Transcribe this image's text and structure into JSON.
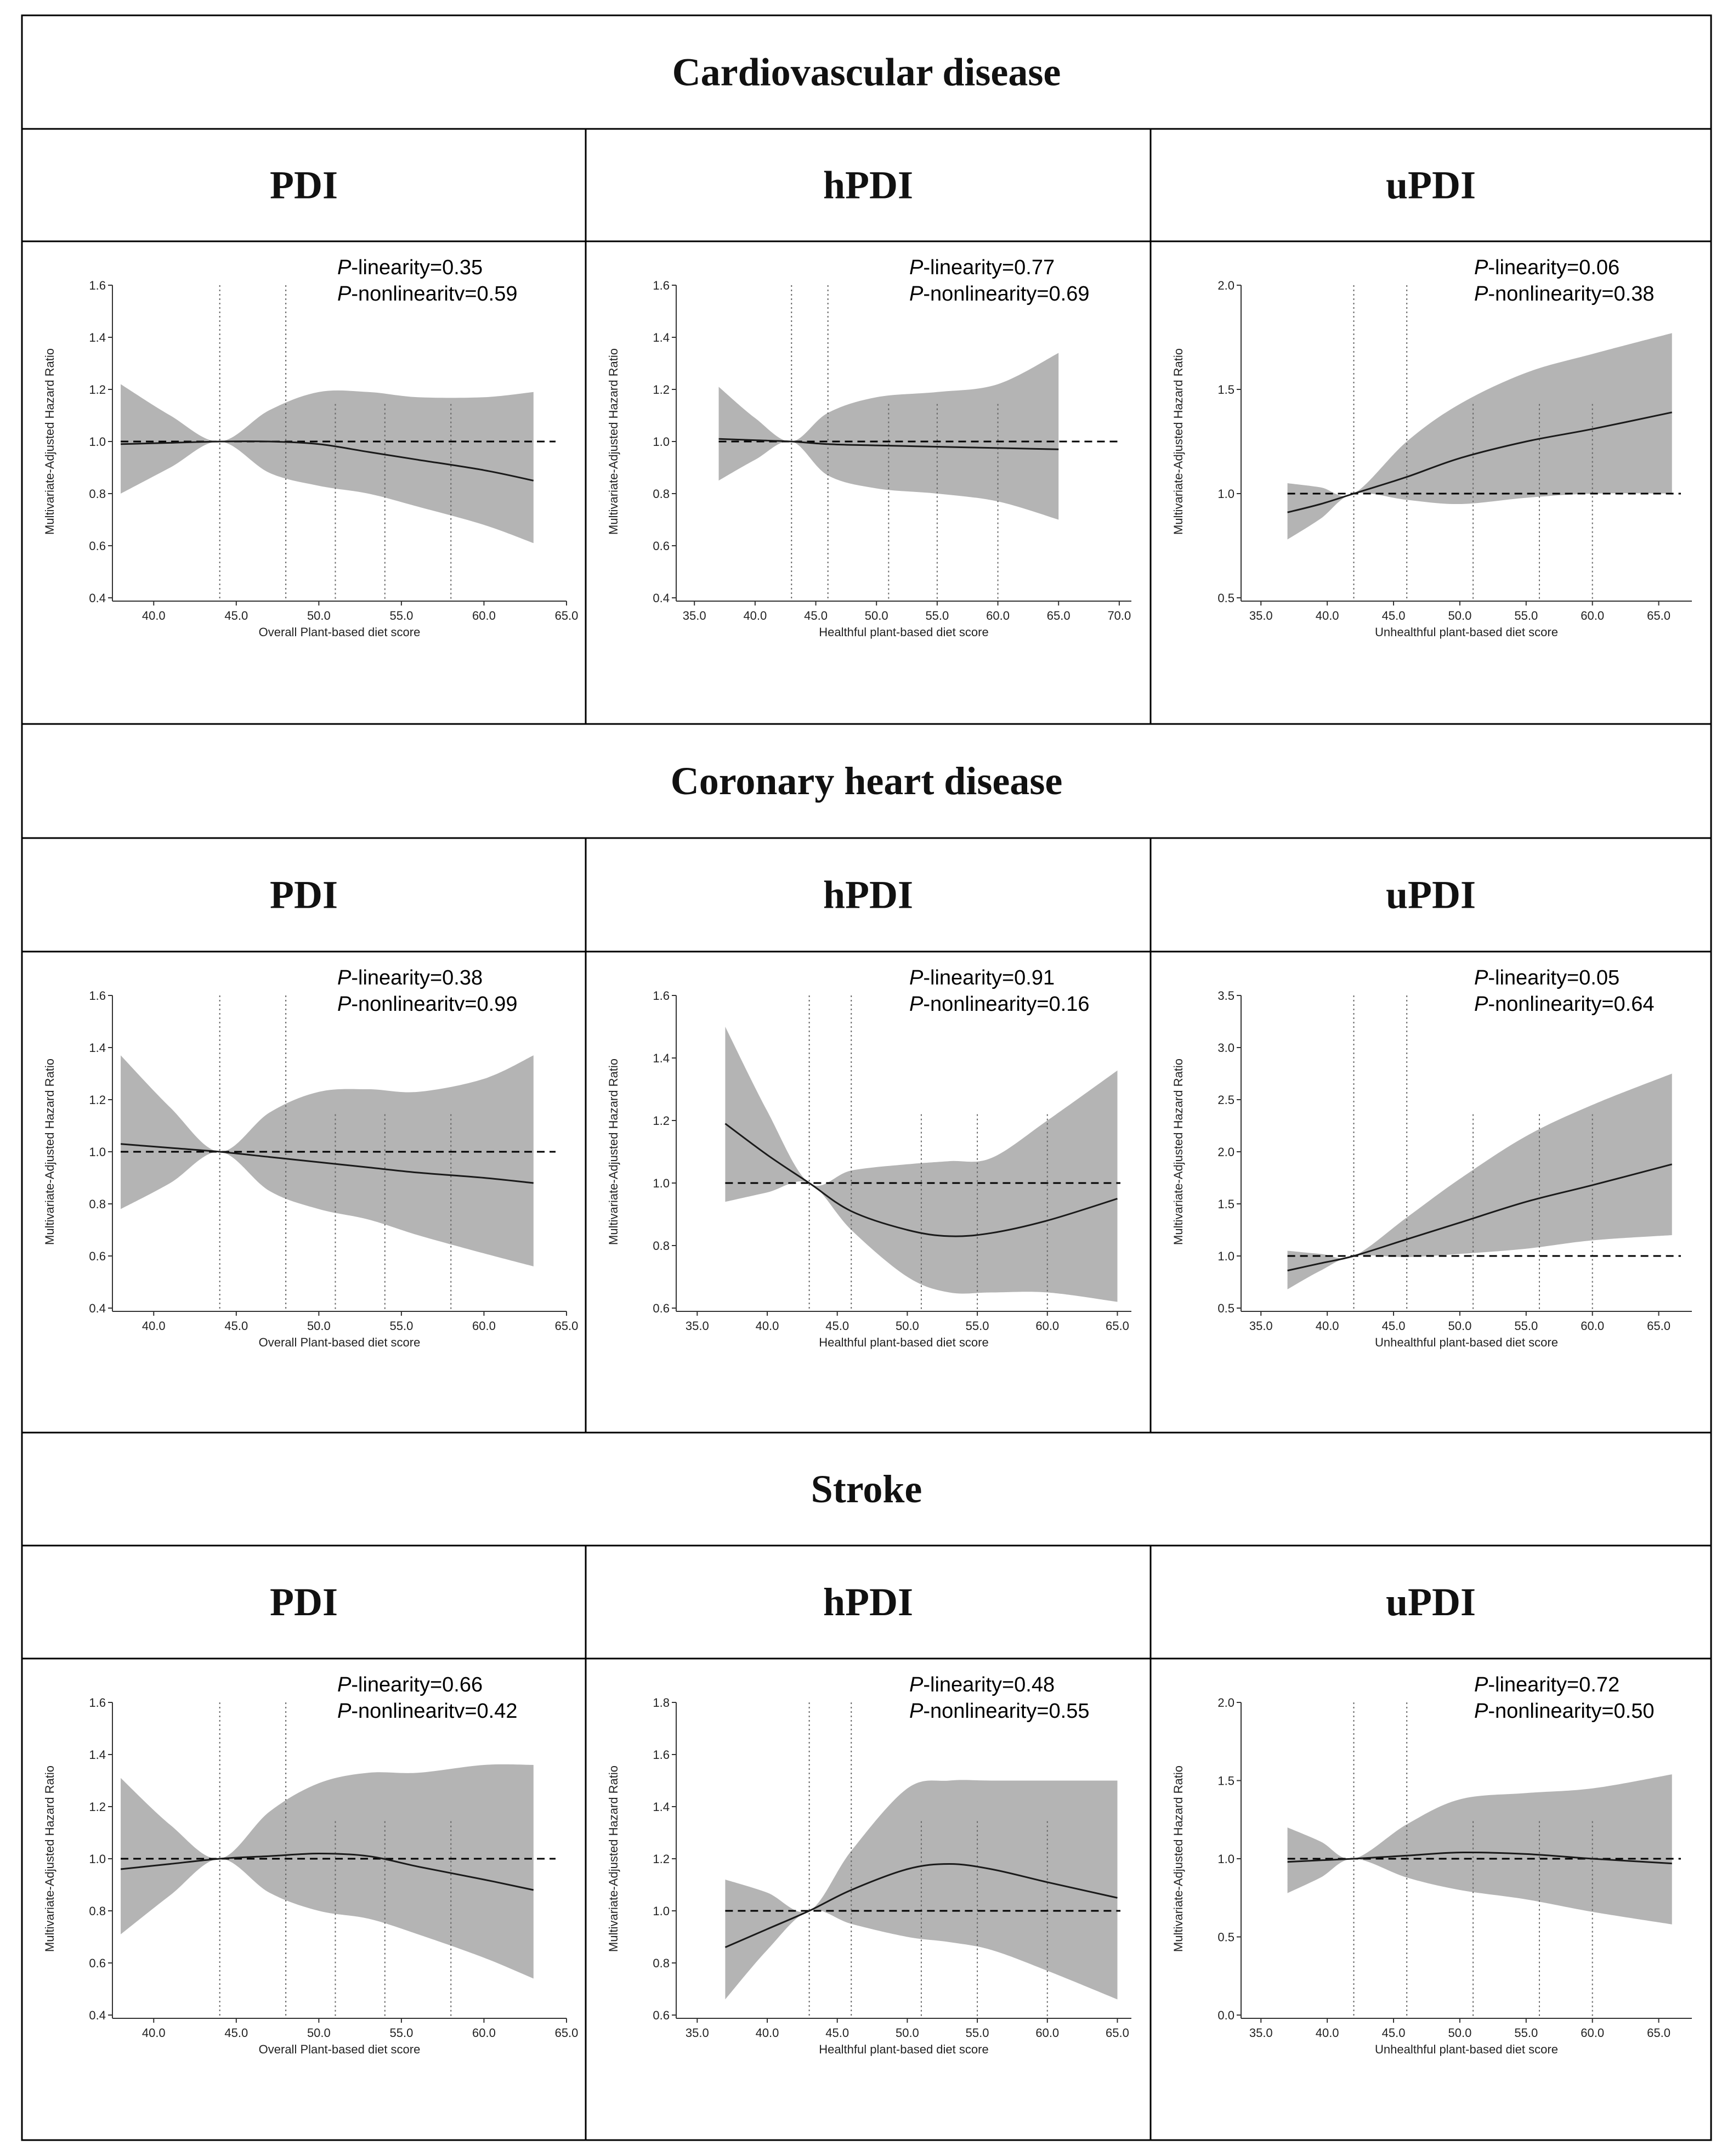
{
  "sections": [
    {
      "title": "Cardiovascular disease"
    },
    {
      "title": "Coronary heart disease"
    },
    {
      "title": "Stroke"
    }
  ],
  "columns": [
    "PDI",
    "hPDI",
    "uPDI"
  ],
  "p_prefix": "P",
  "colors": {
    "band": "#b4b4b4",
    "line": "#1a1a1a",
    "border": "#000000",
    "dotted": "#666666"
  },
  "chart_data": [
    {
      "type": "area",
      "section": "Cardiovascular disease",
      "column": "PDI",
      "xlabel": "Overall Plant-based diet score",
      "ylabel": "Multivariate-Adjusted Hazard Ratio",
      "xlim": [
        37.5,
        65
      ],
      "ylim": [
        0.4,
        1.6
      ],
      "xticks": [
        "40.0",
        "45.0",
        "50.0",
        "55.0",
        "60.0",
        "65.0"
      ],
      "yticks": [
        "0.4",
        "0.6",
        "0.8",
        "1.0",
        "1.2",
        "1.4",
        "1.6"
      ],
      "p_linearity": "-linearity=0.35",
      "p_nonlinearity": "-nonlinearitv=0.59",
      "reference_line": 1.0,
      "knots": [
        44,
        48,
        51,
        54,
        58
      ],
      "x": [
        38,
        41,
        44,
        47,
        50,
        53,
        56,
        60,
        63
      ],
      "hr": [
        0.99,
        0.995,
        1.0,
        1.0,
        0.99,
        0.96,
        0.93,
        0.89,
        0.85
      ],
      "lower": [
        0.8,
        0.9,
        1.0,
        0.88,
        0.83,
        0.8,
        0.75,
        0.68,
        0.61
      ],
      "upper": [
        1.22,
        1.1,
        1.0,
        1.12,
        1.19,
        1.19,
        1.17,
        1.17,
        1.19
      ]
    },
    {
      "type": "area",
      "section": "Cardiovascular disease",
      "column": "hPDI",
      "xlabel": "Healthful plant-based diet score",
      "ylabel": "Multivariate-Adjusted Hazard Ratio",
      "xlim": [
        33.5,
        71
      ],
      "ylim": [
        0.4,
        1.6
      ],
      "xticks": [
        "35.0",
        "40.0",
        "45.0",
        "50.0",
        "55.0",
        "60.0",
        "65.0",
        "70.0"
      ],
      "yticks": [
        "0.4",
        "0.6",
        "0.8",
        "1.0",
        "1.2",
        "1.4",
        "1.6"
      ],
      "p_linearity": "-linearity=0.77",
      "p_nonlinearity": "-nonlinearity=0.69",
      "reference_line": 1.0,
      "knots": [
        43,
        46,
        51,
        55,
        60
      ],
      "x": [
        37,
        40,
        43,
        46,
        50,
        55,
        60,
        65
      ],
      "hr": [
        1.01,
        1.005,
        1.0,
        0.99,
        0.985,
        0.98,
        0.975,
        0.97
      ],
      "lower": [
        0.85,
        0.93,
        1.0,
        0.87,
        0.82,
        0.8,
        0.77,
        0.7
      ],
      "upper": [
        1.21,
        1.09,
        1.0,
        1.11,
        1.17,
        1.19,
        1.22,
        1.34
      ]
    },
    {
      "type": "area",
      "section": "Cardiovascular disease",
      "column": "uPDI",
      "xlabel": "Unhealthful plant-based diet score",
      "ylabel": "Multivariate-Adjusted Hazard Ratio",
      "xlim": [
        33.5,
        67.5
      ],
      "ylim": [
        0.5,
        2.0
      ],
      "xticks": [
        "35.0",
        "40.0",
        "45.0",
        "50.0",
        "55.0",
        "60.0",
        "65.0"
      ],
      "yticks": [
        "0.5",
        "1.0",
        "1.5",
        "2.0"
      ],
      "p_linearity": "-linearity=0.06",
      "p_nonlinearity": "-nonlinearity=0.38",
      "reference_line": 1.0,
      "knots": [
        42,
        46,
        51,
        56,
        60
      ],
      "x": [
        37,
        39.5,
        42,
        46,
        50,
        55,
        60,
        66
      ],
      "hr": [
        0.91,
        0.95,
        1.0,
        1.08,
        1.17,
        1.25,
        1.31,
        1.39
      ],
      "lower": [
        0.78,
        0.88,
        1.0,
        0.97,
        0.95,
        0.98,
        1.0,
        1.0
      ],
      "upper": [
        1.05,
        1.03,
        1.0,
        1.25,
        1.43,
        1.58,
        1.67,
        1.77
      ]
    },
    {
      "type": "area",
      "section": "Coronary heart disease",
      "column": "PDI",
      "xlabel": "Overall Plant-based diet score",
      "ylabel": "Multivariate-Adjusted Hazard Ratio",
      "xlim": [
        37.5,
        65
      ],
      "ylim": [
        0.4,
        1.6
      ],
      "xticks": [
        "40.0",
        "45.0",
        "50.0",
        "55.0",
        "60.0",
        "65.0"
      ],
      "yticks": [
        "0.4",
        "0.6",
        "0.8",
        "1.0",
        "1.2",
        "1.4",
        "1.6"
      ],
      "p_linearity": "-linearity=0.38",
      "p_nonlinearity": "-nonlinearitv=0.99",
      "reference_line": 1.0,
      "knots": [
        44,
        48,
        51,
        54,
        58
      ],
      "x": [
        38,
        41,
        44,
        47,
        50,
        53,
        56,
        60,
        63
      ],
      "hr": [
        1.03,
        1.015,
        1.0,
        0.98,
        0.96,
        0.94,
        0.92,
        0.9,
        0.88
      ],
      "lower": [
        0.78,
        0.88,
        1.0,
        0.85,
        0.78,
        0.74,
        0.68,
        0.61,
        0.56
      ],
      "upper": [
        1.37,
        1.17,
        1.0,
        1.15,
        1.23,
        1.24,
        1.23,
        1.28,
        1.37
      ]
    },
    {
      "type": "area",
      "section": "Coronary heart disease",
      "column": "hPDI",
      "xlabel": "Healthful plant-based diet score",
      "ylabel": "Multivariate-Adjusted Hazard Ratio",
      "xlim": [
        33.5,
        66
      ],
      "ylim": [
        0.6,
        1.6
      ],
      "xticks": [
        "35.0",
        "40.0",
        "45.0",
        "50.0",
        "55.0",
        "60.0",
        "65.0"
      ],
      "yticks": [
        "0.6",
        "0.8",
        "1.0",
        "1.2",
        "1.4",
        "1.6"
      ],
      "p_linearity": "-linearity=0.91",
      "p_nonlinearity": "-nonlinearity=0.16",
      "reference_line": 1.0,
      "knots": [
        43,
        46,
        51,
        55,
        60
      ],
      "x": [
        37,
        40,
        43,
        46,
        50,
        53,
        56,
        60,
        65
      ],
      "hr": [
        1.19,
        1.09,
        1.0,
        0.91,
        0.85,
        0.83,
        0.84,
        0.88,
        0.95
      ],
      "lower": [
        0.94,
        0.97,
        1.0,
        0.85,
        0.7,
        0.65,
        0.65,
        0.65,
        0.62
      ],
      "upper": [
        1.5,
        1.23,
        1.0,
        1.04,
        1.06,
        1.07,
        1.08,
        1.2,
        1.36
      ]
    },
    {
      "type": "area",
      "section": "Coronary heart disease",
      "column": "uPDI",
      "xlabel": "Unhealthful plant-based diet score",
      "ylabel": "Multivariate-Adjusted Hazard Ratio",
      "xlim": [
        33.5,
        67.5
      ],
      "ylim": [
        0.5,
        3.5
      ],
      "xticks": [
        "35.0",
        "40.0",
        "45.0",
        "50.0",
        "55.0",
        "60.0",
        "65.0"
      ],
      "yticks": [
        "0.5",
        "1.0",
        "1.5",
        "2.0",
        "2.5",
        "3.0",
        "3.5"
      ],
      "p_linearity": "-linearity=0.05",
      "p_nonlinearity": "-nonlinearity=0.64",
      "reference_line": 1.0,
      "knots": [
        42,
        46,
        51,
        56,
        60
      ],
      "x": [
        37,
        39.5,
        42,
        46,
        50,
        55,
        60,
        66
      ],
      "hr": [
        0.86,
        0.93,
        1.0,
        1.16,
        1.32,
        1.52,
        1.68,
        1.88
      ],
      "lower": [
        0.68,
        0.86,
        1.0,
        0.99,
        1.02,
        1.07,
        1.15,
        1.2
      ],
      "upper": [
        1.05,
        1.02,
        1.0,
        1.37,
        1.74,
        2.15,
        2.45,
        2.75
      ]
    },
    {
      "type": "area",
      "section": "Stroke",
      "column": "PDI",
      "xlabel": "Overall Plant-based diet score",
      "ylabel": "Multivariate-Adjusted Hazard Ratio",
      "xlim": [
        37.5,
        65
      ],
      "ylim": [
        0.4,
        1.6
      ],
      "xticks": [
        "40.0",
        "45.0",
        "50.0",
        "55.0",
        "60.0",
        "65.0"
      ],
      "yticks": [
        "0.4",
        "0.6",
        "0.8",
        "1.0",
        "1.2",
        "1.4",
        "1.6"
      ],
      "p_linearity": "-linearity=0.66",
      "p_nonlinearity": "-nonlinearitv=0.42",
      "reference_line": 1.0,
      "knots": [
        44,
        48,
        51,
        54,
        58
      ],
      "x": [
        38,
        41,
        44,
        47,
        50,
        53,
        56,
        60,
        63
      ],
      "hr": [
        0.96,
        0.98,
        1.0,
        1.01,
        1.02,
        1.01,
        0.97,
        0.92,
        0.88
      ],
      "lower": [
        0.71,
        0.86,
        1.0,
        0.87,
        0.8,
        0.77,
        0.71,
        0.62,
        0.54
      ],
      "upper": [
        1.31,
        1.13,
        1.0,
        1.18,
        1.29,
        1.33,
        1.33,
        1.36,
        1.36
      ]
    },
    {
      "type": "area",
      "section": "Stroke",
      "column": "hPDI",
      "xlabel": "Healthful plant-based diet score",
      "ylabel": "Multivariate-Adjusted Hazard Ratio",
      "xlim": [
        33.5,
        66
      ],
      "ylim": [
        0.6,
        1.8
      ],
      "xticks": [
        "35.0",
        "40.0",
        "45.0",
        "50.0",
        "55.0",
        "60.0",
        "65.0"
      ],
      "yticks": [
        "0.6",
        "0.8",
        "1.0",
        "1.2",
        "1.4",
        "1.6",
        "1.8"
      ],
      "p_linearity": "-linearity=0.48",
      "p_nonlinearity": "-nonlinearity=0.55",
      "reference_line": 1.0,
      "knots": [
        43,
        46,
        51,
        55,
        60
      ],
      "x": [
        37,
        40,
        43,
        46,
        50,
        53,
        56,
        60,
        65
      ],
      "hr": [
        0.86,
        0.93,
        1.0,
        1.08,
        1.16,
        1.18,
        1.16,
        1.11,
        1.05
      ],
      "lower": [
        0.66,
        0.85,
        1.0,
        0.95,
        0.9,
        0.88,
        0.85,
        0.77,
        0.66
      ],
      "upper": [
        1.12,
        1.07,
        1.0,
        1.23,
        1.47,
        1.5,
        1.5,
        1.5,
        1.5
      ]
    },
    {
      "type": "area",
      "section": "Stroke",
      "column": "uPDI",
      "xlabel": "Unhealthful plant-based diet score",
      "ylabel": "Multivariate-Adjusted Hazard Ratio",
      "xlim": [
        33.5,
        67.5
      ],
      "ylim": [
        0.0,
        2.0
      ],
      "xticks": [
        "35.0",
        "40.0",
        "45.0",
        "50.0",
        "55.0",
        "60.0",
        "65.0"
      ],
      "yticks": [
        "0.0",
        "0.5",
        "1.0",
        "1.5",
        "2.0"
      ],
      "p_linearity": "-linearity=0.72",
      "p_nonlinearity": "-nonlinearity=0.50",
      "reference_line": 1.0,
      "knots": [
        42,
        46,
        51,
        56,
        60
      ],
      "x": [
        37,
        39.5,
        42,
        46,
        50,
        55,
        60,
        66
      ],
      "hr": [
        0.98,
        0.99,
        1.0,
        1.02,
        1.04,
        1.03,
        1.0,
        0.97
      ],
      "lower": [
        0.78,
        0.88,
        1.0,
        0.88,
        0.8,
        0.74,
        0.66,
        0.58
      ],
      "upper": [
        1.2,
        1.11,
        1.0,
        1.22,
        1.38,
        1.42,
        1.45,
        1.54
      ]
    }
  ]
}
